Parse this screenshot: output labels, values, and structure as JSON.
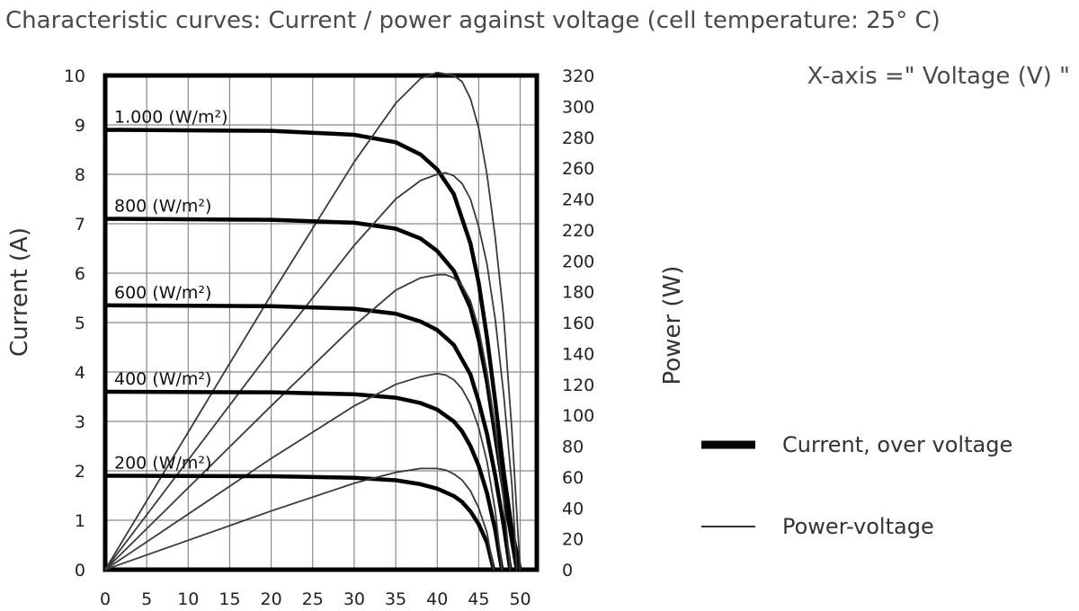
{
  "chart_data": {
    "type": "line",
    "title": "Characteristic curves: Current / power against voltage (cell temperature: 25° C)",
    "x_note": "X-axis =\" Voltage (V) \"",
    "xlabel": "",
    "ylabel_left": "Current (A)",
    "ylabel_right": "Power (W)",
    "xlim": [
      0,
      52
    ],
    "ylim_left": [
      0,
      10
    ],
    "ylim_right": [
      0,
      320
    ],
    "x_ticks": [
      "0",
      "5",
      "10",
      "15",
      "20",
      "25",
      "30",
      "35",
      "40",
      "45",
      "50"
    ],
    "y_left_ticks": [
      "0",
      "1",
      "2",
      "3",
      "4",
      "5",
      "6",
      "7",
      "8",
      "9",
      "10"
    ],
    "y_right_ticks": [
      "0",
      "20",
      "40",
      "60",
      "80",
      "100",
      "120",
      "140",
      "160",
      "180",
      "200",
      "220",
      "240",
      "260",
      "280",
      "300",
      "320"
    ],
    "grid": true,
    "legend": {
      "position": "right",
      "entries": [
        {
          "label": "Current, over voltage",
          "style": "thick"
        },
        {
          "label": "Power-voltage",
          "style": "thin"
        }
      ]
    },
    "curve_labels": [
      "1.000 (W/m²)",
      "800 (W/m²)",
      "600 (W/m²)",
      "400 (W/m²)",
      "200 (W/m²)"
    ],
    "series": [
      {
        "irradiance": "1.000 (W/m²)",
        "kind": "current",
        "axis": "left",
        "x": [
          0,
          20,
          30,
          35,
          38,
          40,
          42,
          44,
          45,
          46,
          47,
          48,
          49,
          50
        ],
        "y": [
          8.9,
          8.88,
          8.8,
          8.65,
          8.4,
          8.1,
          7.6,
          6.6,
          5.8,
          4.7,
          3.4,
          2.0,
          0.8,
          0
        ]
      },
      {
        "irradiance": "1.000 (W/m²)",
        "kind": "power",
        "axis": "right",
        "x": [
          0,
          10,
          20,
          30,
          35,
          38,
          40,
          42,
          43,
          44,
          45,
          46,
          47,
          48,
          49,
          50
        ],
        "y": [
          0,
          89,
          178,
          264,
          302,
          318,
          322,
          320,
          316,
          305,
          286,
          256,
          215,
          164,
          90,
          0
        ]
      },
      {
        "irradiance": "800 (W/m²)",
        "kind": "current",
        "axis": "left",
        "x": [
          0,
          20,
          30,
          35,
          38,
          40,
          42,
          44,
          45,
          46,
          47,
          48,
          49,
          49.6
        ],
        "y": [
          7.1,
          7.08,
          7.02,
          6.9,
          6.7,
          6.45,
          6.05,
          5.3,
          4.65,
          3.8,
          2.7,
          1.6,
          0.6,
          0
        ]
      },
      {
        "irradiance": "800 (W/m²)",
        "kind": "power",
        "axis": "right",
        "x": [
          0,
          10,
          20,
          30,
          35,
          38,
          40,
          41,
          42,
          43,
          44,
          45,
          46,
          47,
          48,
          49,
          49.6
        ],
        "y": [
          0,
          71,
          142,
          210,
          240,
          252,
          256,
          257,
          255,
          250,
          240,
          222,
          198,
          162,
          114,
          55,
          0
        ]
      },
      {
        "irradiance": "600 (W/m²)",
        "kind": "current",
        "axis": "left",
        "x": [
          0,
          20,
          30,
          35,
          38,
          40,
          42,
          44,
          45,
          46,
          47,
          48,
          48.8
        ],
        "y": [
          5.35,
          5.33,
          5.28,
          5.18,
          5.02,
          4.85,
          4.55,
          3.95,
          3.4,
          2.75,
          1.9,
          0.9,
          0
        ]
      },
      {
        "irradiance": "600 (W/m²)",
        "kind": "power",
        "axis": "right",
        "x": [
          0,
          10,
          20,
          30,
          35,
          38,
          40,
          41,
          42,
          43,
          44,
          45,
          46,
          47,
          48,
          48.8
        ],
        "y": [
          0,
          53,
          106,
          158,
          181,
          189,
          191,
          191,
          189,
          184,
          174,
          156,
          128,
          92,
          45,
          0
        ]
      },
      {
        "irradiance": "400 (W/m²)",
        "kind": "current",
        "axis": "left",
        "x": [
          0,
          20,
          30,
          35,
          38,
          40,
          42,
          43,
          44,
          45,
          46,
          47,
          47.8
        ],
        "y": [
          3.6,
          3.59,
          3.55,
          3.48,
          3.37,
          3.24,
          3.0,
          2.8,
          2.5,
          2.1,
          1.55,
          0.8,
          0
        ]
      },
      {
        "irradiance": "400 (W/m²)",
        "kind": "power",
        "axis": "right",
        "x": [
          0,
          10,
          20,
          30,
          35,
          38,
          40,
          41,
          42,
          43,
          44,
          45,
          46,
          47,
          47.8
        ],
        "y": [
          0,
          36,
          72,
          106,
          120,
          125,
          127,
          126,
          123,
          117,
          107,
          92,
          70,
          38,
          0
        ]
      },
      {
        "irradiance": "200 (W/m²)",
        "kind": "current",
        "axis": "left",
        "x": [
          0,
          20,
          30,
          35,
          38,
          40,
          42,
          43,
          44,
          45,
          46,
          46.8
        ],
        "y": [
          1.9,
          1.89,
          1.86,
          1.81,
          1.73,
          1.64,
          1.49,
          1.37,
          1.18,
          0.92,
          0.55,
          0
        ]
      },
      {
        "irradiance": "200 (W/m²)",
        "kind": "power",
        "axis": "right",
        "x": [
          0,
          10,
          20,
          30,
          35,
          38,
          40,
          41,
          42,
          43,
          44,
          45,
          46,
          46.8
        ],
        "y": [
          0,
          19,
          38,
          56,
          63,
          65.5,
          65.5,
          64.5,
          62,
          58,
          51,
          40,
          24,
          0
        ]
      }
    ]
  }
}
